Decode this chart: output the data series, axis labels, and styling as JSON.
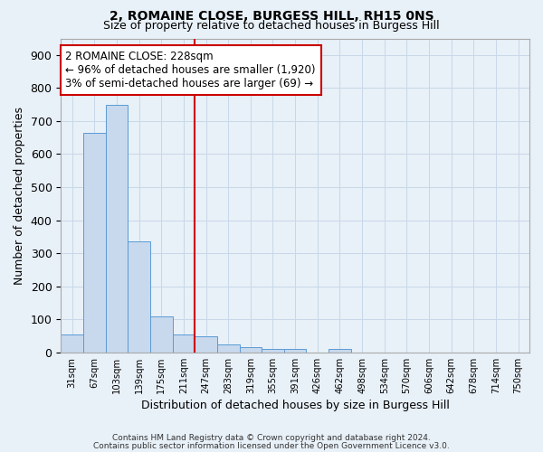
{
  "title1": "2, ROMAINE CLOSE, BURGESS HILL, RH15 0NS",
  "title2": "Size of property relative to detached houses in Burgess Hill",
  "xlabel": "Distribution of detached houses by size in Burgess Hill",
  "ylabel": "Number of detached properties",
  "categories": [
    "31sqm",
    "67sqm",
    "103sqm",
    "139sqm",
    "175sqm",
    "211sqm",
    "247sqm",
    "283sqm",
    "319sqm",
    "355sqm",
    "391sqm",
    "426sqm",
    "462sqm",
    "498sqm",
    "534sqm",
    "570sqm",
    "606sqm",
    "642sqm",
    "678sqm",
    "714sqm",
    "750sqm"
  ],
  "bar_heights": [
    55,
    665,
    750,
    335,
    110,
    55,
    50,
    25,
    15,
    10,
    10,
    0,
    10,
    0,
    0,
    0,
    0,
    0,
    0,
    0,
    0
  ],
  "bar_color": "#c8d8ed",
  "bar_edge_color": "#5b9bd5",
  "vline_index": 6,
  "vline_color": "#cc0000",
  "ylim": [
    0,
    950
  ],
  "yticks": [
    0,
    100,
    200,
    300,
    400,
    500,
    600,
    700,
    800,
    900
  ],
  "annotation_text": "2 ROMAINE CLOSE: 228sqm\n← 96% of detached houses are smaller (1,920)\n3% of semi-detached houses are larger (69) →",
  "annotation_box_color": "#cc0000",
  "grid_color": "#c8d8e8",
  "background_color": "#e8f0f8",
  "plot_bg_color": "#e8f0f8",
  "footnote1": "Contains HM Land Registry data © Crown copyright and database right 2024.",
  "footnote2": "Contains public sector information licensed under the Open Government Licence v3.0.",
  "title1_fontsize": 10,
  "title2_fontsize": 9,
  "xlabel_fontsize": 9,
  "ylabel_fontsize": 9,
  "annot_fontsize": 8.5
}
